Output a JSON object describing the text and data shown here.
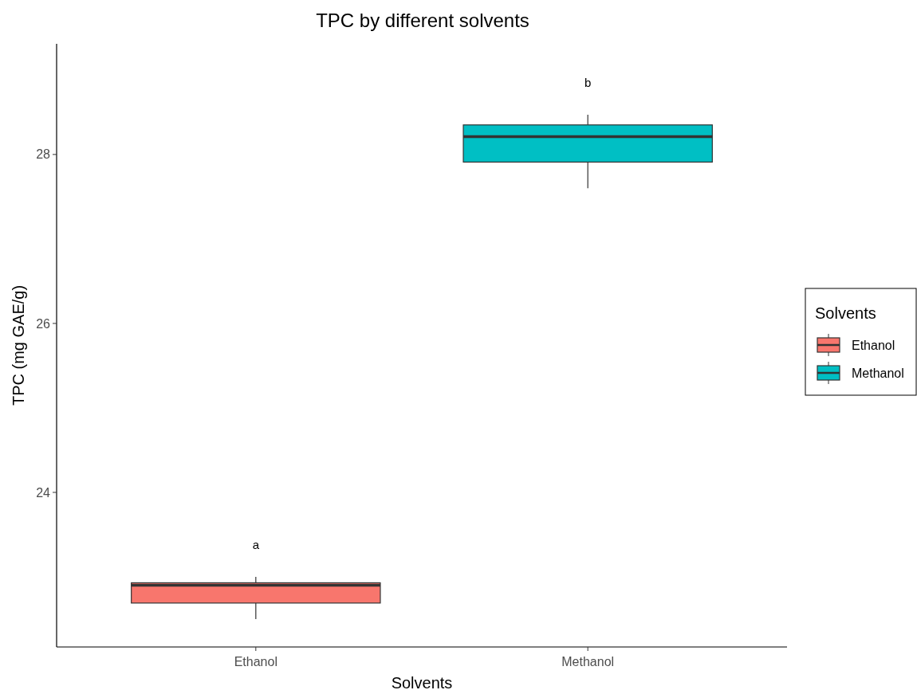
{
  "chart_data": {
    "type": "box",
    "title": "TPC by different solvents",
    "xlabel": "Solvents",
    "ylabel": "TPC (mg GAE/g)",
    "legend_title": "Solvents",
    "legend": "right",
    "grid": false,
    "categories": [
      "Ethanol",
      "Methanol"
    ],
    "series": [
      {
        "name": "Ethanol",
        "color": "#f8766d",
        "boxes": [
          {
            "low": 22.5,
            "q1": 22.69,
            "median": 22.9,
            "q3": 22.93,
            "high": 23.0
          },
          null
        ]
      },
      {
        "name": "Methanol",
        "color": "#00bfc4",
        "boxes": [
          null,
          {
            "low": 27.6,
            "q1": 27.91,
            "median": 28.21,
            "q3": 28.35,
            "high": 28.47
          }
        ]
      }
    ],
    "ylim": [
      22.17,
      29.31
    ],
    "yticks": [
      24,
      26,
      28
    ],
    "annotations": [
      "a",
      "b"
    ]
  }
}
